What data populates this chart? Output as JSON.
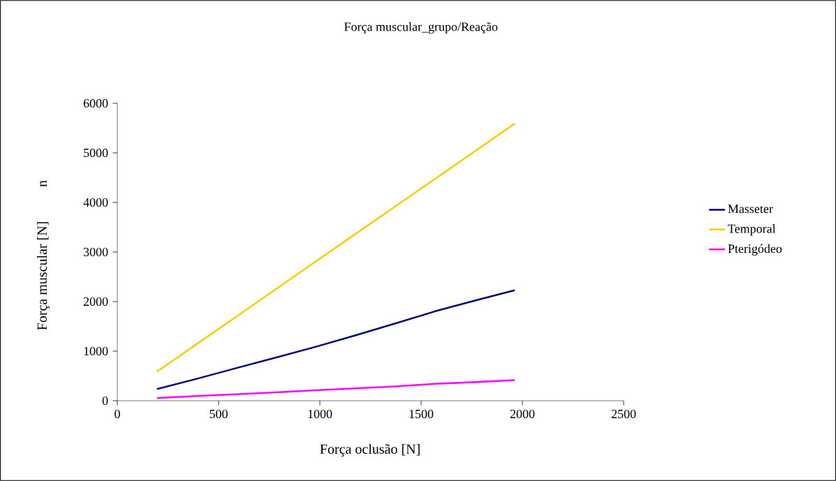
{
  "chart_data": {
    "type": "line",
    "title": "Força muscular_grupo/Reação",
    "xlabel": "Força oclusão [N]",
    "ylabel": "Força muscular [N]",
    "annotations": [
      "n"
    ],
    "x": [
      196,
      392,
      589,
      785,
      981,
      1177,
      1373,
      1570,
      1766,
      1962
    ],
    "series": [
      {
        "name": "Masseter",
        "color": "#000080",
        "values": [
          237,
          442,
          660,
          873,
          1090,
          1320,
          1560,
          1805,
          2021,
          2230
        ]
      },
      {
        "name": "Temporal",
        "color": "#ffcc00",
        "values": [
          587,
          1142,
          1700,
          2257,
          2813,
          3368,
          3923,
          4478,
          5035,
          5590
        ]
      },
      {
        "name": "Pterigódeo",
        "color": "#ff00ff",
        "values": [
          54,
          95,
          130,
          170,
          210,
          250,
          290,
          340,
          375,
          414
        ]
      }
    ],
    "xlim": [
      0,
      2500
    ],
    "ylim": [
      0,
      6000
    ],
    "xticks": [
      0,
      500,
      1000,
      1500,
      2000,
      2500
    ],
    "yticks": [
      0,
      1000,
      2000,
      3000,
      4000,
      5000,
      6000
    ],
    "grid": false,
    "legend": "right",
    "marker": "none",
    "line_style": "solid"
  }
}
